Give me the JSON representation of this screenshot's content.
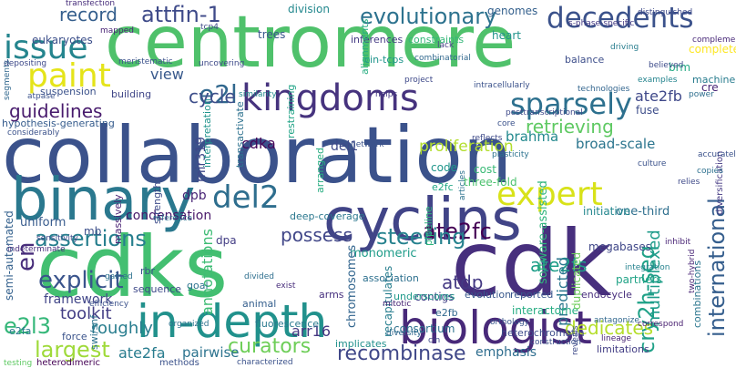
{
  "words": [
    {
      "text": "centromere",
      "color": "#4fc16b"
    },
    {
      "text": "collaboration",
      "color": "#3b528b"
    },
    {
      "text": "cdks",
      "color": "#43bf71"
    },
    {
      "text": "cdk",
      "color": "#472f7d"
    },
    {
      "text": "binary",
      "color": "#2a788e"
    },
    {
      "text": "cyclins",
      "color": "#414487"
    },
    {
      "text": "in-depth",
      "color": "#21918c"
    },
    {
      "text": "biologist",
      "color": "#482979"
    },
    {
      "text": "kingdoms",
      "color": "#46337e"
    },
    {
      "text": "issue",
      "color": "#25858e"
    },
    {
      "text": "paint",
      "color": "#e5e419"
    },
    {
      "text": "expert",
      "color": "#d8e219"
    },
    {
      "text": "decedents",
      "color": "#3b528b"
    },
    {
      "text": "evolutionary",
      "color": "#2c728e"
    },
    {
      "text": "attfin-1",
      "color": "#3e4a89"
    },
    {
      "text": "sparsely",
      "color": "#2d708e"
    },
    {
      "text": "cry2h-seq",
      "color": "#1fa187"
    },
    {
      "text": "del2",
      "color": "#2e6e8e"
    },
    {
      "text": "e2l",
      "color": "#31688e"
    },
    {
      "text": "record",
      "color": "#355f8d"
    },
    {
      "text": "assertions",
      "color": "#277f8e"
    },
    {
      "text": "ate2fc",
      "color": "#440154"
    },
    {
      "text": "explicit",
      "color": "#3a548c"
    },
    {
      "text": "en",
      "color": "#472c7a"
    },
    {
      "text": "steering",
      "color": "#26828e"
    },
    {
      "text": "recombinase",
      "color": "#3f4788"
    },
    {
      "text": "largest",
      "color": "#9fda3a"
    },
    {
      "text": "curators",
      "color": "#6ece58"
    },
    {
      "text": "e2l3",
      "color": "#35b779"
    },
    {
      "text": "international",
      "color": "#355e8d"
    },
    {
      "text": "retrieving",
      "color": "#5ec962"
    },
    {
      "text": "guidelines",
      "color": "#481b6d"
    },
    {
      "text": "ate2fs",
      "color": "#1f9e89"
    },
    {
      "text": "atdp",
      "color": "#443983"
    },
    {
      "text": "cycle",
      "color": "#3d4e8a"
    },
    {
      "text": "possess",
      "color": "#404688"
    },
    {
      "text": "dedicates",
      "color": "#b5de2b"
    },
    {
      "text": "toolkit",
      "color": "#433e85"
    },
    {
      "text": "ate2fb",
      "color": "#3f4889"
    },
    {
      "text": "view",
      "color": "#38598c"
    },
    {
      "text": "multiplexed",
      "color": "#1e9b8a"
    },
    {
      "text": "predicted",
      "color": "#2a778e"
    },
    {
      "text": "framework",
      "color": "#404588"
    },
    {
      "text": "roughly",
      "color": "#287d8e"
    },
    {
      "text": "proliferation",
      "color": "#b2dd2d"
    },
    {
      "text": "cdka",
      "color": "#46075a"
    },
    {
      "text": "annotations",
      "color": "#3dbc74"
    },
    {
      "text": "brahma",
      "color": "#23898e"
    },
    {
      "text": "broad-scale",
      "color": "#2b758e"
    },
    {
      "text": "arr16",
      "color": "#453781"
    },
    {
      "text": "ate2fa",
      "color": "#287c8e"
    },
    {
      "text": "pairwise",
      "color": "#2c738e"
    },
    {
      "text": "emphasis",
      "color": "#2e6d8e"
    },
    {
      "text": "mir319",
      "color": "#3f4889"
    },
    {
      "text": "del1",
      "color": "#3e4a89"
    },
    {
      "text": "dpb",
      "color": "#482475"
    },
    {
      "text": "condensation",
      "color": "#481769"
    },
    {
      "text": "software-assisted",
      "color": "#2fb47c"
    },
    {
      "text": "one-third",
      "color": "#2e6f8e"
    },
    {
      "text": "code",
      "color": "#1f968b"
    },
    {
      "text": "cost",
      "color": "#3aba76"
    },
    {
      "text": "three-fold",
      "color": "#4ac16d"
    },
    {
      "text": "initiative",
      "color": "#24878e"
    },
    {
      "text": "monomeric",
      "color": "#1e9c89"
    },
    {
      "text": "chromosomes",
      "color": "#32658e"
    },
    {
      "text": "recapitulates",
      "color": "#277e8e"
    },
    {
      "text": "consortium",
      "color": "#2d718e"
    },
    {
      "text": "contigs",
      "color": "#414287"
    },
    {
      "text": "interactome",
      "color": "#25ac82"
    },
    {
      "text": "duplicated",
      "color": "#6ccd5a"
    },
    {
      "text": "partners",
      "color": "#20a386"
    },
    {
      "text": "megabases",
      "color": "#3f4788"
    },
    {
      "text": "combinations",
      "color": "#2a768e"
    },
    {
      "text": "endocycle",
      "color": "#472e7c"
    },
    {
      "text": "reported",
      "color": "#39568c"
    },
    {
      "text": "semi-automated",
      "color": "#34618d"
    },
    {
      "text": "hypothesis-generating",
      "color": "#365c8d"
    },
    {
      "text": "uniform",
      "color": "#375b8d"
    },
    {
      "text": "mb",
      "color": "#3c4f8a"
    },
    {
      "text": "massively",
      "color": "#482173"
    },
    {
      "text": "strengths",
      "color": "#3e4c8a"
    },
    {
      "text": "transactivate",
      "color": "#2d718e"
    },
    {
      "text": "interpretation",
      "color": "#1f948c"
    },
    {
      "text": "restraining",
      "color": "#20a386"
    },
    {
      "text": "trees",
      "color": "#39568c"
    },
    {
      "text": "division",
      "color": "#23888e"
    },
    {
      "text": "inferences",
      "color": "#443a83"
    },
    {
      "text": "constraints",
      "color": "#35b779"
    },
    {
      "text": "heart",
      "color": "#20938c"
    },
    {
      "text": "genomes",
      "color": "#34608d"
    },
    {
      "text": "eukaryotes",
      "color": "#3c4f8a"
    },
    {
      "text": "cin-tcps",
      "color": "#1f958b"
    },
    {
      "text": "alignments",
      "color": "#27ad81"
    },
    {
      "text": "brm",
      "color": "#23a983"
    },
    {
      "text": "cre",
      "color": "#482475"
    },
    {
      "text": "fuse",
      "color": "#3d4d8a"
    },
    {
      "text": "balance",
      "color": "#3d4e8a"
    },
    {
      "text": "complete",
      "color": "#fde725"
    },
    {
      "text": "machinery",
      "color": "#287c8e"
    },
    {
      "text": "building",
      "color": "#404688"
    },
    {
      "text": "suspension",
      "color": "#3b528b"
    },
    {
      "text": "e2fa",
      "color": "#2a768e"
    },
    {
      "text": "rbr",
      "color": "#3b528b"
    },
    {
      "text": "sequence",
      "color": "#3e4989"
    },
    {
      "text": "dpa",
      "color": "#433d84"
    },
    {
      "text": "goal",
      "color": "#2c728e"
    },
    {
      "text": "animal",
      "color": "#355f8d"
    },
    {
      "text": "arranged",
      "color": "#27ad81"
    },
    {
      "text": "deep-coverage",
      "color": "#2a778e"
    },
    {
      "text": "e2fc",
      "color": "#22a785"
    },
    {
      "text": "pipeline",
      "color": "#2fb47c"
    },
    {
      "text": "underscores",
      "color": "#1f9a8a"
    },
    {
      "text": "association",
      "color": "#2d708e"
    },
    {
      "text": "evolution",
      "color": "#38588c"
    },
    {
      "text": "arms",
      "color": "#46307e"
    },
    {
      "text": "e2fb",
      "color": "#31688e"
    },
    {
      "text": "force",
      "color": "#3a538b"
    },
    {
      "text": "swi/snf",
      "color": "#2c738e"
    },
    {
      "text": "fluorescence",
      "color": "#29798e"
    },
    {
      "text": "heterochromatin",
      "color": "#3e4c8a"
    },
    {
      "text": "limitations",
      "color": "#433e85"
    },
    {
      "text": "implicates",
      "color": "#21918c"
    },
    {
      "text": "heterodimeric",
      "color": "#440154"
    },
    {
      "text": "methods",
      "color": "#3b528b"
    },
    {
      "text": "transfection",
      "color": "#472d7b"
    },
    {
      "text": "tcp4",
      "color": "#3e4a89"
    },
    {
      "text": "lack",
      "color": "#433e85"
    },
    {
      "text": "technologies",
      "color": "#32658e"
    },
    {
      "text": "power",
      "color": "#2e6e8e"
    },
    {
      "text": "intracellularly",
      "color": "#3b528b"
    },
    {
      "text": "testing",
      "color": "#5ec962"
    },
    {
      "text": "examples",
      "color": "#25848e"
    },
    {
      "text": "organized",
      "color": "#2c728e"
    },
    {
      "text": "helps",
      "color": "#453882"
    },
    {
      "text": "divided",
      "color": "#2e6f8e"
    },
    {
      "text": "construction",
      "color": "#3b528b"
    },
    {
      "text": "orthology",
      "color": "#39568c"
    },
    {
      "text": "lineage",
      "color": "#482475"
    },
    {
      "text": "reveals",
      "color": "#3e4a89"
    },
    {
      "text": "correspond",
      "color": "#481f70"
    },
    {
      "text": "antagonize",
      "color": "#31688e"
    },
    {
      "text": "integration",
      "color": "#26828e"
    },
    {
      "text": "inhibit",
      "color": "#482475"
    },
    {
      "text": "diversification",
      "color": "#443983"
    },
    {
      "text": "culture",
      "color": "#3b528b"
    },
    {
      "text": "copies",
      "color": "#2d708e"
    },
    {
      "text": "relies",
      "color": "#3e4a89"
    },
    {
      "text": "articles",
      "color": "#2c728e"
    },
    {
      "text": "network",
      "color": "#3b528b"
    },
    {
      "text": "project",
      "color": "#3e4989"
    },
    {
      "text": "reference",
      "color": "#2d708e"
    },
    {
      "text": "similarity",
      "color": "#238a8d"
    },
    {
      "text": "accurately",
      "color": "#3b528b"
    },
    {
      "text": "complementary",
      "color": "#482878"
    },
    {
      "text": "distinguished",
      "color": "#3e4a89"
    },
    {
      "text": "s-phase-specific",
      "color": "#443983"
    },
    {
      "text": "driving",
      "color": "#287d8e"
    },
    {
      "text": "believed",
      "color": "#3e4c8a"
    },
    {
      "text": "atpase",
      "color": "#3b528b"
    },
    {
      "text": "depositing",
      "color": "#3e4989"
    },
    {
      "text": "mapped",
      "color": "#482475"
    },
    {
      "text": "segments",
      "color": "#31688e"
    },
    {
      "text": "considerably",
      "color": "#3b528b"
    },
    {
      "text": "indeterminate",
      "color": "#472d7b"
    },
    {
      "text": "sensitivity",
      "color": "#3e4a89"
    },
    {
      "text": "gained",
      "color": "#2c728e"
    },
    {
      "text": "efficiency",
      "color": "#3b528b"
    },
    {
      "text": "exist",
      "color": "#472d7b"
    },
    {
      "text": "cin",
      "color": "#3e4a89"
    },
    {
      "text": "characterized",
      "color": "#3b528b"
    },
    {
      "text": "mitotic",
      "color": "#482475"
    },
    {
      "text": "diversity",
      "color": "#31688e"
    },
    {
      "text": "reflects",
      "color": "#3e4a89"
    },
    {
      "text": "plasticity",
      "color": "#2c728e"
    },
    {
      "text": "core",
      "color": "#3b528b"
    },
    {
      "text": "posttranscriptional",
      "color": "#3e4989"
    },
    {
      "text": "combinatorial",
      "color": "#31688e"
    },
    {
      "text": "uncovering",
      "color": "#3e4a89"
    },
    {
      "text": "meristematic",
      "color": "#3b528b"
    },
    {
      "text": "two-hybrid",
      "color": "#482475"
    }
  ]
}
